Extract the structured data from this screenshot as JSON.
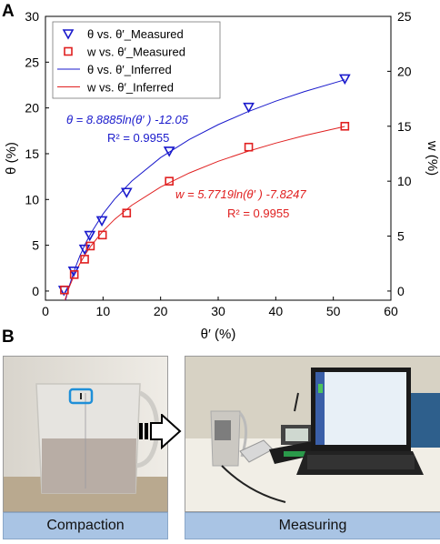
{
  "panels": {
    "a_label": "A",
    "b_label": "B"
  },
  "chart_data": {
    "type": "scatter",
    "xlabel": "θ′ (%)",
    "ylabel_left": "θ (%)",
    "ylabel_right": "w (%)",
    "xlim": [
      0,
      60
    ],
    "ylim_left": [
      -1,
      30
    ],
    "ylim_right": [
      -0.8333,
      25
    ],
    "x_ticks": [
      0,
      10,
      20,
      30,
      40,
      50,
      60
    ],
    "y_left_ticks": [
      0,
      5,
      10,
      15,
      20,
      25,
      30
    ],
    "y_right_ticks": [
      0,
      5,
      10,
      15,
      20,
      25
    ],
    "grid": false,
    "legend_position": "top-left",
    "series": [
      {
        "name": "θ vs. θ′_Measured",
        "kind": "scatter",
        "marker": "triangle-down",
        "color": "#1a1acc",
        "axis": "left",
        "x": [
          3.2,
          4.9,
          6.8,
          7.7,
          9.8,
          14.1,
          21.5,
          35.3,
          52.0
        ],
        "y": [
          0.1,
          2.2,
          4.6,
          6.1,
          7.7,
          10.8,
          15.3,
          20.1,
          23.2
        ]
      },
      {
        "name": "w vs. θ′_Measured",
        "kind": "scatter",
        "marker": "square",
        "color": "#e02020",
        "axis": "right",
        "x": [
          3.3,
          5.0,
          6.8,
          7.8,
          9.9,
          14.1,
          21.5,
          35.3,
          52.0
        ],
        "y": [
          0.1,
          1.5,
          2.9,
          4.1,
          5.1,
          7.1,
          10.0,
          13.1,
          15.0
        ]
      },
      {
        "name": "θ vs. θ′_Inferred",
        "kind": "line",
        "color": "#1a1acc",
        "axis": "left",
        "x": [
          3.0,
          4.0,
          5.0,
          6.0,
          7.0,
          8.0,
          10.0,
          12.0,
          15.0,
          20.0,
          25.0,
          30.0,
          35.0,
          40.0,
          45.0,
          52.0
        ],
        "y": [
          -2.29,
          0.27,
          2.25,
          3.88,
          5.25,
          6.43,
          8.42,
          10.04,
          12.02,
          14.58,
          16.56,
          18.18,
          19.55,
          20.74,
          21.79,
          23.07
        ]
      },
      {
        "name": "w vs. θ′_Inferred",
        "kind": "line",
        "color": "#e02020",
        "axis": "right",
        "x": [
          3.0,
          4.0,
          5.0,
          6.0,
          7.0,
          8.0,
          10.0,
          12.0,
          15.0,
          20.0,
          25.0,
          30.0,
          35.0,
          40.0,
          45.0,
          52.0
        ],
        "y": [
          -1.48,
          0.18,
          1.46,
          2.52,
          3.41,
          4.18,
          5.47,
          6.52,
          7.81,
          9.47,
          10.75,
          11.81,
          12.7,
          13.47,
          14.15,
          14.98
        ]
      }
    ],
    "annotations": {
      "theta_eq": "θ = 8.8885ln(θ′ ) -12.05",
      "theta_r2": "R² = 0.9955",
      "w_eq": "w = 5.7719ln(θ′ ) -7.8247",
      "w_r2": "R² = 0.9955"
    }
  },
  "photos": {
    "left_caption": "Compaction",
    "right_caption": "Measuring"
  }
}
